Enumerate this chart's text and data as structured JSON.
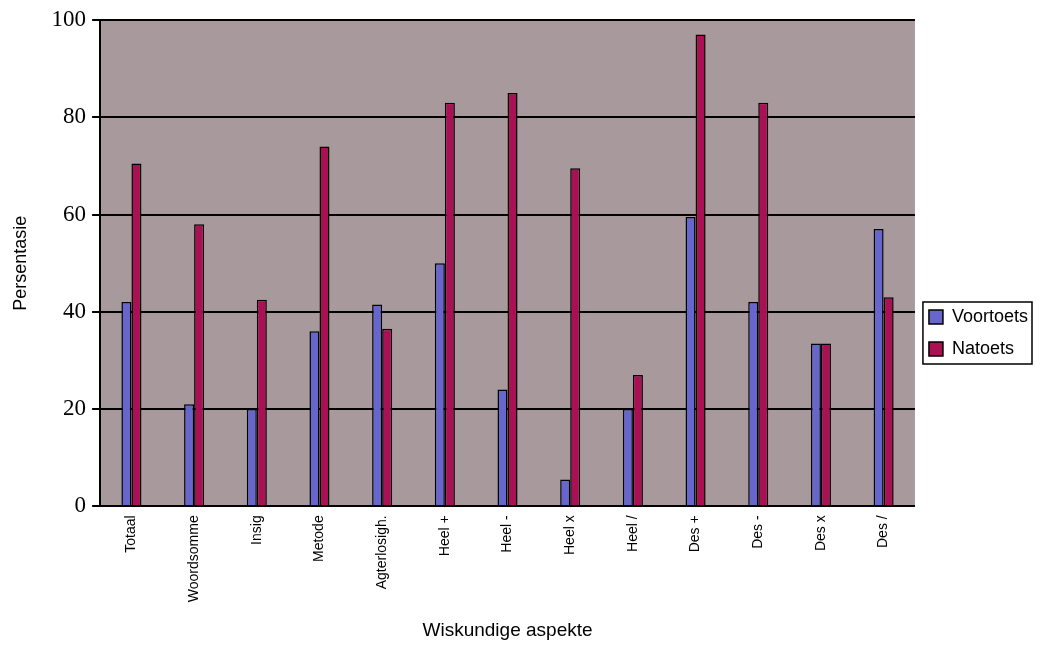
{
  "chart_data": {
    "type": "bar",
    "xlabel": "Wiskundige aspekte",
    "ylabel": "Persentasie",
    "categories": [
      "Totaal",
      "Woordsomme",
      "Insig",
      "Metode",
      "Agterlosigh.",
      "Heel +",
      "Heel -",
      "Heel x",
      "Heel /",
      "Des +",
      "Des -",
      "Des x",
      "Des /"
    ],
    "series": [
      {
        "name": "Voortoets",
        "color": "#6666cc",
        "values": [
          42,
          21,
          20,
          36,
          41.5,
          50,
          24,
          5.5,
          20,
          59.5,
          42,
          33.5,
          57
        ]
      },
      {
        "name": "Natoets",
        "color": "#aa1155",
        "values": [
          70.5,
          58,
          42.5,
          74,
          36.5,
          83,
          85,
          69.5,
          27,
          97,
          83,
          33.5,
          43
        ]
      }
    ],
    "ylim": [
      0,
      100
    ],
    "yticks": [
      0,
      20,
      40,
      60,
      80,
      100
    ],
    "grid": "y",
    "legend": "right"
  }
}
